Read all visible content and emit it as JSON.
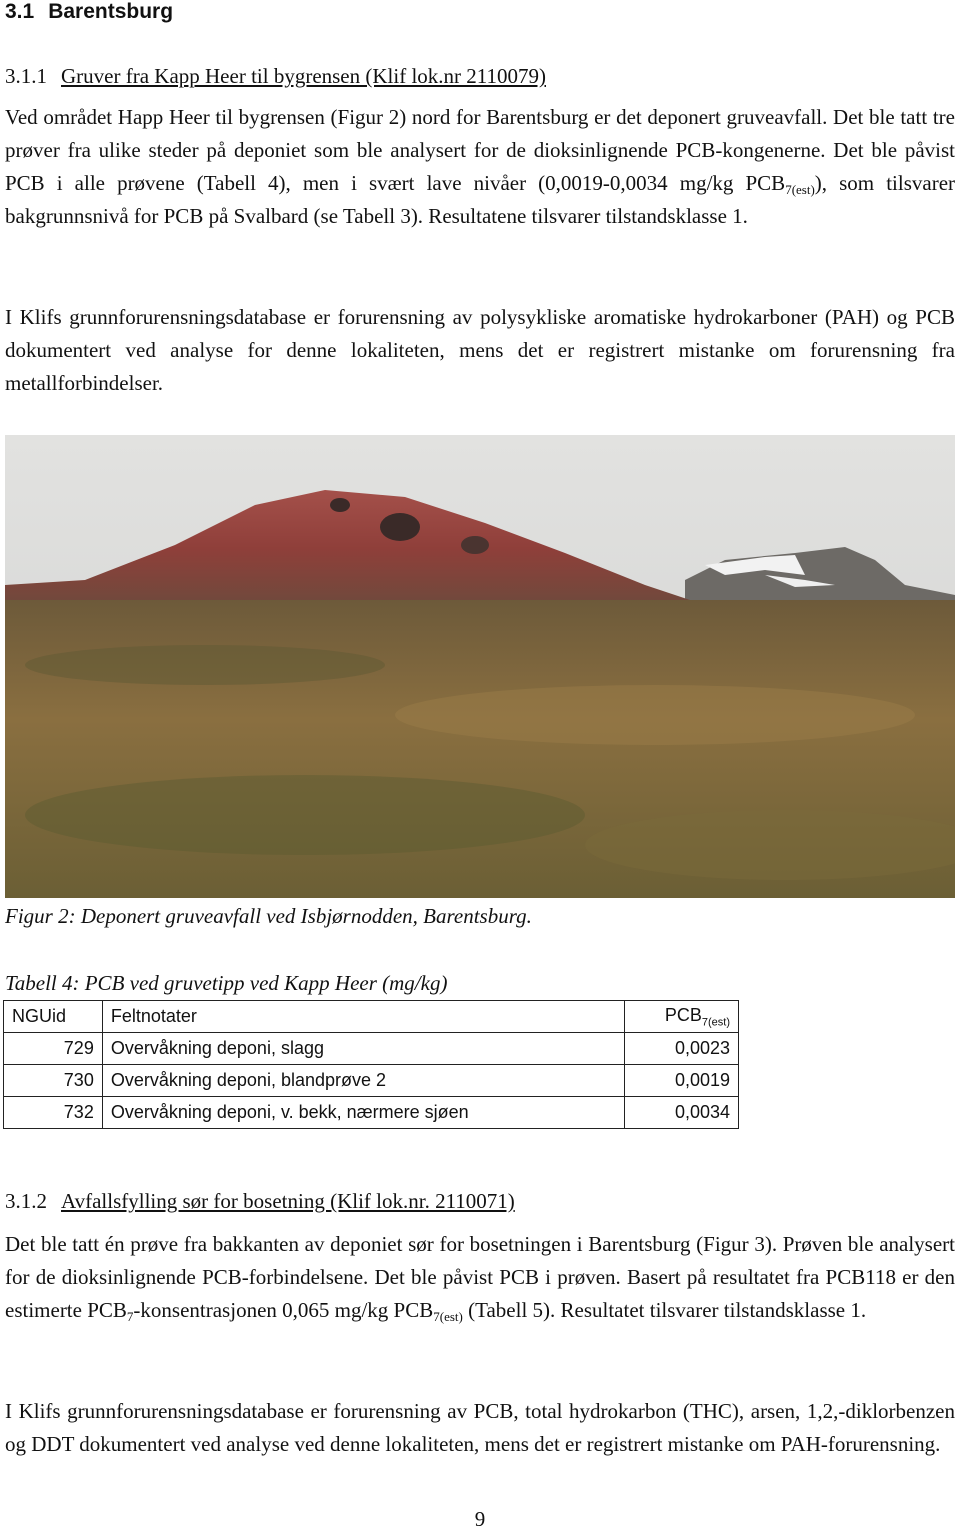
{
  "heading": {
    "number": "3.1",
    "title": "Barentsburg"
  },
  "subsection_1": {
    "number": "3.1.1",
    "title": "Gruver fra Kapp Heer til bygrensen (Klif lok.nr 2110079)",
    "paragraphs": [
      [
        "Ved området Happ Heer til bygrensen (Figur 2) nord for Barentsburg er det deponert gruveavfall. Det ble tatt tre prøver fra ulike steder på deponiet som ble analysert for de dioksinlignende PCB-kongenerne. Det ble påvist PCB i alle prøvene (Tabell 4), men i svært lave nivåer (0,0019-0,0034 mg/kg PCB",
        "7(est)",
        "), som tilsvarer bakgrunnsnivå for PCB på Svalbard (se Tabell 3). Resultatene tilsvarer tilstandsklasse 1."
      ],
      [
        "I Klifs grunnforurensningsdatabase er forurensning av polysykliske aromatiske hydrokarboner (PAH) og PCB dokumentert ved analyse for denne lokaliteten, mens det er registrert mistanke om forurensning fra metallforbindelser."
      ]
    ]
  },
  "figure": {
    "caption": "Figur 2: Deponert gruveavfall ved Isbjørnodden, Barentsburg."
  },
  "table": {
    "caption": "Tabell 4: PCB ved gruvetipp ved Kapp Heer (mg/kg)",
    "header": [
      "NGUid",
      "Feltnotater",
      "PCB"
    ],
    "header_subscript": "7(est)",
    "rows": [
      [
        "729",
        "Overvåkning deponi, slagg",
        "0,0023"
      ],
      [
        "730",
        "Overvåkning deponi, blandprøve 2",
        "0,0019"
      ],
      [
        "732",
        "Overvåkning deponi, v. bekk, nærmere sjøen",
        "0,0034"
      ]
    ]
  },
  "subsection_2": {
    "number": "3.1.2",
    "title": "Avfallsfylling sør for bosetning (Klif lok.nr. 2110071)",
    "paragraphs": [
      [
        "Det ble tatt én prøve fra bakkanten av deponiet sør for bosetningen i Barentsburg (Figur 3). Prøven ble analysert for de dioksinlignende PCB-forbindelsene. Det ble påvist PCB i prøven. Basert på resultatet fra PCB118 er den estimerte PCB",
        "7",
        "-konsentrasjonen 0,065 mg/kg PCB",
        "7(est)",
        " (Tabell 5). Resultatet tilsvarer tilstandsklasse 1."
      ],
      [
        "I Klifs grunnforurensningsdatabase er forurensning av PCB, total hydrokarbon (THC), arsen, 1,2,-diklorbenzen og DDT dokumentert ved analyse ved denne lokaliteten, mens det er registrert mistanke om PAH-forurensning."
      ]
    ]
  },
  "page_number": "9"
}
